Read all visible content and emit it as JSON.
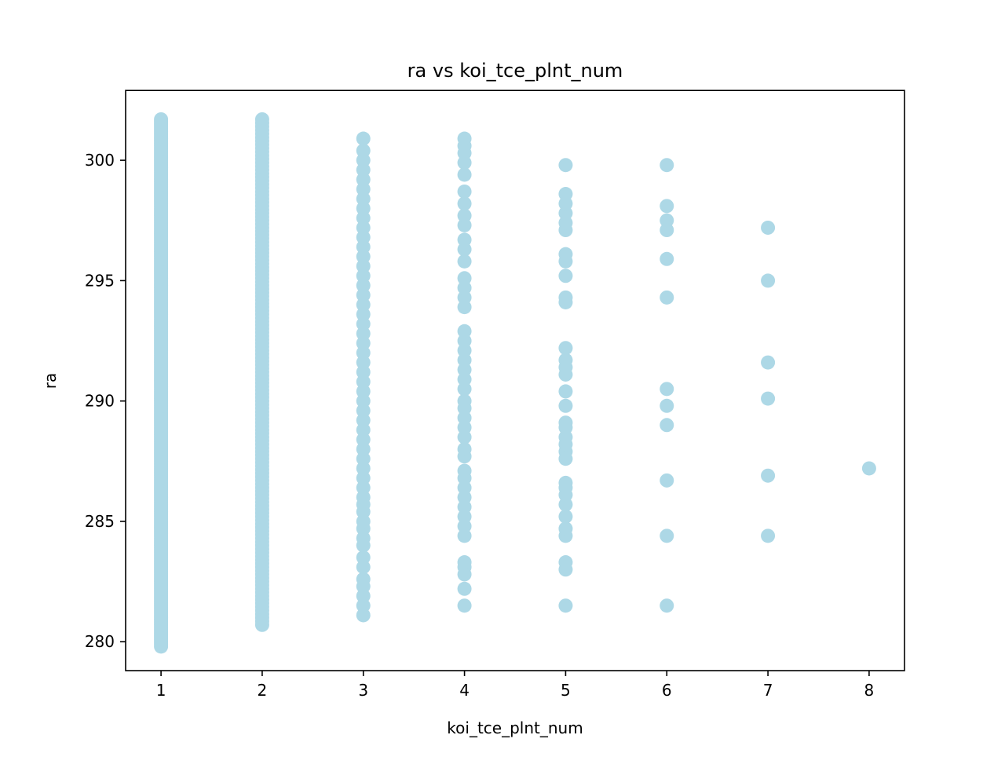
{
  "chart_data": {
    "type": "scatter",
    "title": "ra vs koi_tce_plnt_num",
    "xlabel": "koi_tce_plnt_num",
    "ylabel": "ra",
    "xlim": [
      0.65,
      8.35
    ],
    "ylim": [
      278.8,
      302.9
    ],
    "x_ticks": [
      1,
      2,
      3,
      4,
      5,
      6,
      7,
      8
    ],
    "x_tick_labels": [
      "1",
      "2",
      "3",
      "4",
      "5",
      "6",
      "7",
      "8"
    ],
    "y_ticks": [
      280,
      285,
      290,
      295,
      300
    ],
    "y_tick_labels": [
      "280",
      "285",
      "290",
      "295",
      "300"
    ],
    "grid": false,
    "marker_color": "#add8e6",
    "series": [
      {
        "groups": [
          {
            "x": 1,
            "dense_range": [
              279.8,
              301.7
            ],
            "step": 0.1
          },
          {
            "x": 2,
            "dense_range": [
              280.7,
              301.7
            ],
            "step": 0.15
          },
          {
            "x": 3,
            "values": [
              281.1,
              281.5,
              281.9,
              282.3,
              282.6,
              283.1,
              283.5,
              284.0,
              284.3,
              284.7,
              285.0,
              285.4,
              285.7,
              286.0,
              286.4,
              286.8,
              287.2,
              287.6,
              288.0,
              288.4,
              288.8,
              289.2,
              289.6,
              290.0,
              290.4,
              290.8,
              291.2,
              291.6,
              292.0,
              292.4,
              292.8,
              293.2,
              293.6,
              294.0,
              294.4,
              294.8,
              295.2,
              295.6,
              296.0,
              296.4,
              296.8,
              297.2,
              297.6,
              298.0,
              298.4,
              298.8,
              299.2,
              299.6,
              300.0,
              300.4,
              300.9
            ]
          },
          {
            "x": 4,
            "values": [
              281.5,
              282.2,
              282.8,
              283.1,
              283.3,
              284.4,
              284.8,
              285.2,
              285.6,
              286.0,
              286.4,
              286.8,
              287.1,
              287.7,
              288.0,
              288.5,
              288.9,
              289.3,
              289.7,
              290.0,
              290.5,
              290.9,
              291.3,
              291.7,
              292.1,
              292.5,
              292.9,
              293.9,
              294.3,
              294.7,
              295.1,
              295.8,
              296.3,
              296.7,
              297.3,
              297.7,
              298.2,
              298.7,
              299.4,
              299.9,
              300.3,
              300.6,
              300.9
            ]
          },
          {
            "x": 5,
            "values": [
              281.5,
              283.0,
              283.3,
              284.4,
              284.7,
              285.2,
              285.7,
              286.1,
              286.4,
              286.6,
              287.6,
              287.9,
              288.2,
              288.5,
              288.9,
              289.1,
              289.8,
              290.4,
              291.1,
              291.4,
              291.7,
              292.2,
              294.1,
              294.3,
              295.2,
              295.8,
              296.1,
              297.1,
              297.4,
              297.8,
              298.2,
              298.6,
              299.8
            ]
          },
          {
            "x": 6,
            "values": [
              281.5,
              284.4,
              286.7,
              289.0,
              289.8,
              290.5,
              294.3,
              295.9,
              297.1,
              297.5,
              298.1,
              299.8
            ]
          },
          {
            "x": 7,
            "values": [
              284.4,
              286.9,
              290.1,
              291.6,
              295.0,
              297.2
            ]
          },
          {
            "x": 8,
            "values": [
              287.2
            ]
          }
        ]
      }
    ]
  }
}
